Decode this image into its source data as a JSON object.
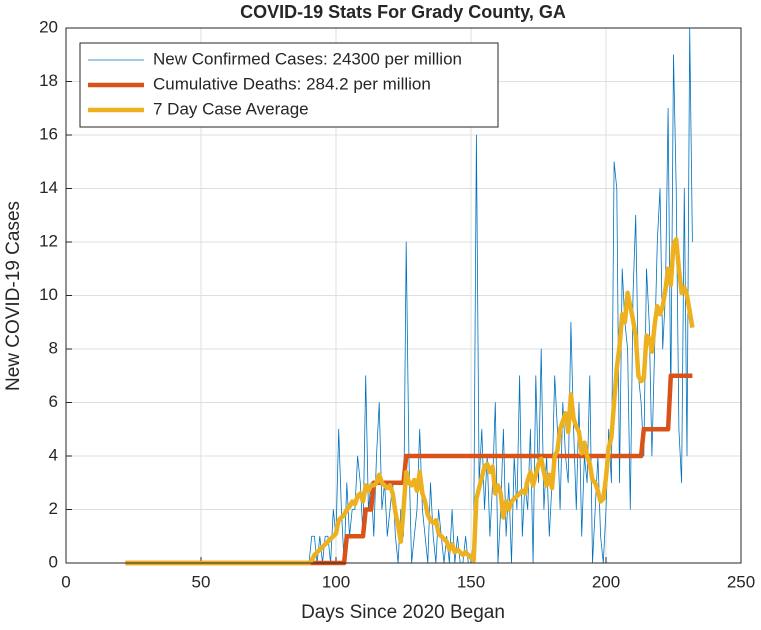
{
  "chart_data": {
    "type": "line",
    "title": "COVID-19 Stats For Grady County, GA",
    "x_label": "Days Since 2020 Began",
    "y_label": "New COVID-19 Cases",
    "xlim": [
      0,
      250
    ],
    "xticks": [
      0,
      50,
      100,
      150,
      200,
      250
    ],
    "ylim": [
      0,
      20
    ],
    "yticks": [
      0,
      2,
      4,
      6,
      8,
      10,
      12,
      14,
      16,
      18,
      20
    ],
    "grid": true,
    "legend": "upper left",
    "x": [
      22,
      23,
      24,
      25,
      26,
      27,
      28,
      29,
      30,
      31,
      32,
      33,
      34,
      35,
      36,
      37,
      38,
      39,
      40,
      41,
      42,
      43,
      44,
      45,
      46,
      47,
      48,
      49,
      50,
      51,
      52,
      53,
      54,
      55,
      56,
      57,
      58,
      59,
      60,
      61,
      62,
      63,
      64,
      65,
      66,
      67,
      68,
      69,
      70,
      71,
      72,
      73,
      74,
      75,
      76,
      77,
      78,
      79,
      80,
      81,
      82,
      83,
      84,
      85,
      86,
      87,
      88,
      89,
      90,
      91,
      92,
      93,
      94,
      95,
      96,
      97,
      98,
      99,
      100,
      101,
      102,
      103,
      104,
      105,
      106,
      107,
      108,
      109,
      110,
      111,
      112,
      113,
      114,
      115,
      116,
      117,
      118,
      119,
      120,
      121,
      122,
      123,
      124,
      125,
      126,
      127,
      128,
      129,
      130,
      131,
      132,
      133,
      134,
      135,
      136,
      137,
      138,
      139,
      140,
      141,
      142,
      143,
      144,
      145,
      146,
      147,
      148,
      149,
      150,
      151,
      152,
      153,
      154,
      155,
      156,
      157,
      158,
      159,
      160,
      161,
      162,
      163,
      164,
      165,
      166,
      167,
      168,
      169,
      170,
      171,
      172,
      173,
      174,
      175,
      176,
      177,
      178,
      179,
      180,
      181,
      182,
      183,
      184,
      185,
      186,
      187,
      188,
      189,
      190,
      191,
      192,
      193,
      194,
      195,
      196,
      197,
      198,
      199,
      200,
      201,
      202,
      203,
      204,
      205,
      206,
      207,
      208,
      209,
      210,
      211,
      212,
      213,
      214,
      215,
      216,
      217,
      218,
      219,
      220,
      221,
      222,
      223,
      224,
      225,
      226,
      227,
      228,
      229,
      230,
      231,
      232
    ],
    "series": [
      {
        "name": "New Confirmed Cases: 24300 per million",
        "color": "#0072bd",
        "width": 0.8,
        "values": [
          0,
          0,
          0,
          0,
          0,
          0,
          0,
          0,
          0,
          0,
          0,
          0,
          0,
          0,
          0,
          0,
          0,
          0,
          0,
          0,
          0,
          0,
          0,
          0,
          0,
          0,
          0,
          0,
          0,
          0,
          0,
          0,
          0,
          0,
          0,
          0,
          0,
          0,
          0,
          0,
          0,
          0,
          0,
          0,
          0,
          0,
          0,
          0,
          0,
          0,
          0,
          0,
          0,
          0,
          0,
          0,
          0,
          0,
          0,
          0,
          0,
          0,
          0,
          0,
          0,
          0,
          0,
          0,
          0,
          1,
          1,
          0,
          1,
          0,
          1,
          1,
          0,
          2,
          1,
          5,
          2,
          0,
          3,
          1,
          2,
          2,
          4,
          3,
          1,
          7,
          2,
          3,
          1,
          4,
          6,
          2,
          3,
          1,
          2,
          3,
          1,
          0,
          2,
          1,
          12,
          4,
          0,
          1,
          2,
          5,
          2,
          1,
          0,
          3,
          1,
          0,
          2,
          1,
          0,
          1,
          0,
          2,
          0,
          1,
          0,
          0,
          1,
          0,
          0,
          1,
          16,
          3,
          5,
          2,
          4,
          1,
          3,
          6,
          0,
          2,
          5,
          1,
          3,
          0,
          4,
          2,
          7,
          1,
          3,
          2,
          5,
          0,
          7,
          3,
          8,
          2,
          4,
          1,
          3,
          7,
          5,
          2,
          6,
          4,
          3,
          9,
          5,
          2,
          6,
          1,
          4,
          3,
          7,
          0,
          2,
          4,
          1,
          0,
          2,
          5,
          3,
          15,
          14,
          3,
          11,
          9,
          8,
          2,
          10,
          13,
          7,
          6,
          4,
          11,
          9,
          4,
          8,
          12,
          14,
          8,
          10,
          17,
          6,
          19,
          14,
          5,
          3,
          14,
          4,
          20,
          12
        ]
      },
      {
        "name": "Cumulative Deaths: 284.2 per million",
        "color": "#d95319",
        "width": 4.5,
        "values": [
          0,
          0,
          0,
          0,
          0,
          0,
          0,
          0,
          0,
          0,
          0,
          0,
          0,
          0,
          0,
          0,
          0,
          0,
          0,
          0,
          0,
          0,
          0,
          0,
          0,
          0,
          0,
          0,
          0,
          0,
          0,
          0,
          0,
          0,
          0,
          0,
          0,
          0,
          0,
          0,
          0,
          0,
          0,
          0,
          0,
          0,
          0,
          0,
          0,
          0,
          0,
          0,
          0,
          0,
          0,
          0,
          0,
          0,
          0,
          0,
          0,
          0,
          0,
          0,
          0,
          0,
          0,
          0,
          0,
          0,
          0,
          0,
          0,
          0,
          0,
          0,
          0,
          0,
          0,
          0,
          0,
          0,
          1,
          1,
          1,
          1,
          1,
          1,
          1,
          2,
          2,
          2,
          3,
          3,
          3,
          3,
          3,
          3,
          3,
          3,
          3,
          3,
          3,
          3,
          4,
          4,
          4,
          4,
          4,
          4,
          4,
          4,
          4,
          4,
          4,
          4,
          4,
          4,
          4,
          4,
          4,
          4,
          4,
          4,
          4,
          4,
          4,
          4,
          4,
          4,
          4,
          4,
          4,
          4,
          4,
          4,
          4,
          4,
          4,
          4,
          4,
          4,
          4,
          4,
          4,
          4,
          4,
          4,
          4,
          4,
          4,
          4,
          4,
          4,
          4,
          4,
          4,
          4,
          4,
          4,
          4,
          4,
          4,
          4,
          4,
          4,
          4,
          4,
          4,
          4,
          4,
          4,
          4,
          4,
          4,
          4,
          4,
          4,
          4,
          4,
          4,
          4,
          4,
          4,
          4,
          4,
          4,
          4,
          4,
          4,
          4,
          4,
          5,
          5,
          5,
          5,
          5,
          5,
          5,
          5,
          5,
          5,
          7,
          7,
          7,
          7,
          7,
          7,
          7,
          7,
          7
        ]
      },
      {
        "name": "7 Day Case Average",
        "color": "#edb120",
        "width": 4.5,
        "values": [
          0,
          0,
          0,
          0,
          0,
          0,
          0,
          0,
          0,
          0,
          0,
          0,
          0,
          0,
          0,
          0,
          0,
          0,
          0,
          0,
          0,
          0,
          0,
          0,
          0,
          0,
          0,
          0,
          0,
          0,
          0,
          0,
          0,
          0,
          0,
          0,
          0,
          0,
          0,
          0,
          0,
          0,
          0,
          0,
          0,
          0,
          0,
          0,
          0,
          0,
          0,
          0,
          0,
          0,
          0,
          0,
          0,
          0,
          0,
          0,
          0,
          0,
          0,
          0,
          0,
          0,
          0,
          0,
          0,
          0.1,
          0.3,
          0.4,
          0.5,
          0.6,
          0.7,
          0.8,
          0.9,
          1.0,
          1.1,
          1.6,
          1.7,
          1.8,
          2.0,
          2.1,
          2.3,
          2.2,
          2.5,
          2.6,
          2.3,
          2.9,
          2.7,
          2.9,
          2.9,
          3.0,
          3.3,
          3.0,
          2.9,
          2.8,
          2.9,
          2.6,
          1.9,
          1.4,
          0.8,
          2.0,
          3.4,
          3.0,
          2.9,
          3.1,
          2.7,
          3.4,
          2.6,
          2.3,
          1.8,
          1.6,
          1.5,
          1.6,
          1.1,
          1.0,
          0.9,
          0.8,
          0.5,
          0.7,
          0.4,
          0.5,
          0.4,
          0.3,
          0.4,
          0.3,
          0.2,
          0.1,
          2.4,
          2.8,
          3.2,
          3.6,
          3.7,
          3.4,
          3.6,
          2.6,
          2.9,
          2.6,
          1.7,
          2.3,
          2.0,
          2.3,
          2.4,
          2.5,
          2.6,
          2.7,
          2.6,
          3.1,
          3.4,
          2.9,
          3.3,
          3.7,
          3.9,
          3.4,
          2.9,
          3.3,
          2.8,
          4.0,
          4.2,
          5.0,
          5.3,
          5.6,
          4.9,
          6.3,
          5.4,
          5.1,
          4.9,
          4.1,
          4.5,
          4.0,
          3.7,
          3.1,
          3.0,
          2.7,
          2.3,
          2.4,
          3.2,
          4.3,
          4.7,
          6.0,
          7.3,
          8.1,
          9.3,
          9.0,
          10.1,
          9.6,
          9.1,
          8.5,
          7.0,
          6.8,
          6.9,
          8.5,
          8.4,
          7.9,
          8.9,
          9.6,
          9.3,
          9.6,
          10.2,
          11.0,
          10.4,
          11.9,
          12.1,
          11.0,
          10.1,
          10.3,
          10.0,
          9.4,
          8.8
        ]
      }
    ]
  }
}
